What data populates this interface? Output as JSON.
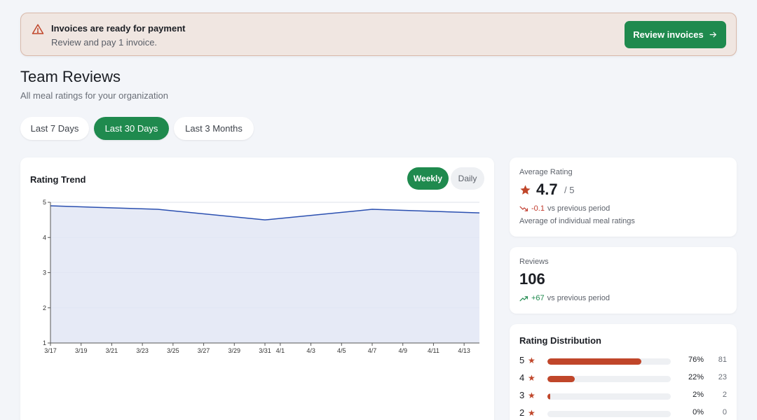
{
  "banner": {
    "title": "Invoices are ready for payment",
    "subtitle": "Review and pay 1 invoice.",
    "button_label": "Review invoices"
  },
  "header": {
    "title": "Team Reviews",
    "subtitle": "All meal ratings for your organization"
  },
  "range_tabs": [
    {
      "label": "Last 7 Days",
      "active": false
    },
    {
      "label": "Last 30 Days",
      "active": true
    },
    {
      "label": "Last 3 Months",
      "active": false
    }
  ],
  "trend": {
    "title": "Rating Trend",
    "toggle": [
      {
        "label": "Weekly",
        "active": true
      },
      {
        "label": "Daily",
        "active": false
      }
    ]
  },
  "chart_data": {
    "type": "area",
    "title": "Rating Trend",
    "x_tick_labels": [
      "3/17",
      "3/19",
      "3/21",
      "3/23",
      "3/25",
      "3/27",
      "3/29",
      "3/31",
      "4/1",
      "4/3",
      "4/5",
      "4/7",
      "4/9",
      "4/11",
      "4/13"
    ],
    "x": [
      "3/17",
      "3/24",
      "3/31",
      "4/7",
      "4/14"
    ],
    "values": [
      4.9,
      4.8,
      4.5,
      4.8,
      4.7
    ],
    "ylim": [
      1,
      5
    ],
    "yticks": [
      1,
      2,
      3,
      4,
      5
    ],
    "grid": true,
    "colors": {
      "line": "#2a4fb0",
      "fill": "#e2e6f5"
    }
  },
  "average_rating": {
    "label": "Average Rating",
    "value": "4.7",
    "out_of": "/ 5",
    "delta": "-0.1",
    "delta_suffix": "vs previous period",
    "note": "Average of individual meal ratings"
  },
  "reviews": {
    "label": "Reviews",
    "value": "106",
    "delta": "+67",
    "delta_suffix": "vs previous period"
  },
  "distribution": {
    "title": "Rating Distribution",
    "rows": [
      {
        "stars": "5",
        "percent": "76%",
        "count": "81",
        "fraction": 0.76
      },
      {
        "stars": "4",
        "percent": "22%",
        "count": "23",
        "fraction": 0.22
      },
      {
        "stars": "3",
        "percent": "2%",
        "count": "2",
        "fraction": 0.02
      },
      {
        "stars": "2",
        "percent": "0%",
        "count": "0",
        "fraction": 0
      }
    ]
  },
  "colors": {
    "accent": "#1f8a4e",
    "star": "#c0462a",
    "down": "#c0392b"
  }
}
